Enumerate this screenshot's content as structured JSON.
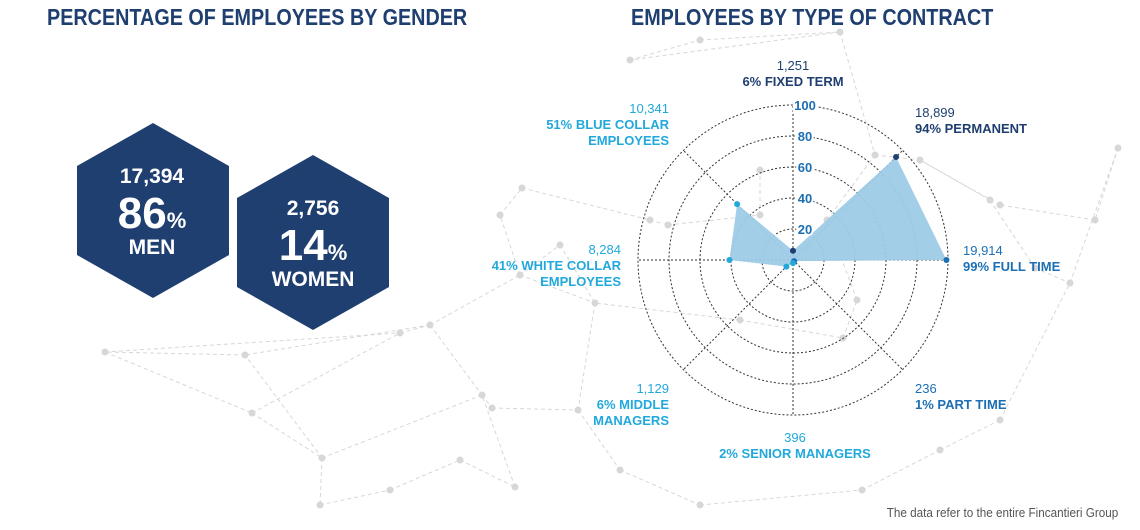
{
  "titles": {
    "gender": "PERCENTAGE OF EMPLOYEES BY GENDER",
    "contract": "EMPLOYEES BY TYPE OF CONTRACT"
  },
  "gender": {
    "men": {
      "count": "17,394",
      "percent": "86",
      "label": "MEN"
    },
    "women": {
      "count": "2,756",
      "percent": "14",
      "label": "WOMEN"
    },
    "percent_sign": "%"
  },
  "footnote": "The data refer to the entire Fincantieri Group",
  "colors": {
    "title": "#1f3f70",
    "hexagon": "#1f3f70",
    "radar_fill": "#9dcbe6",
    "dark_label": "#1f3f70",
    "contract_label": "#1c6fb4",
    "category_label": "#21a9dc"
  },
  "chart_data": {
    "type": "radar",
    "ticks": [
      "20",
      "40",
      "60",
      "80",
      "100"
    ],
    "range": [
      0,
      100
    ],
    "axes": [
      {
        "id": "fixed",
        "count": "1,251",
        "label": "6% FIXED TERM",
        "value": 6,
        "color_key": "dark_label"
      },
      {
        "id": "permanent",
        "count": "18,899",
        "label": "94% PERMANENT",
        "value": 94,
        "color_key": "dark_label"
      },
      {
        "id": "full",
        "count": "19,914",
        "label": "99% FULL TIME",
        "value": 99,
        "color_key": "contract_label"
      },
      {
        "id": "part",
        "count": "236",
        "label": "1% PART TIME",
        "value": 1,
        "color_key": "contract_label"
      },
      {
        "id": "senior",
        "count": "396",
        "label": "2% SENIOR MANAGERS",
        "value": 2,
        "color_key": "category_label"
      },
      {
        "id": "middle",
        "count": "1,129",
        "label": "6% MIDDLE MANAGERS",
        "value": 6,
        "color_key": "category_label"
      },
      {
        "id": "white",
        "count": "8,284",
        "label": "41% WHITE COLLAR EMPLOYEES",
        "value": 41,
        "color_key": "category_label"
      },
      {
        "id": "blue",
        "count": "10,341",
        "label": "51% BLUE COLLAR EMPLOYEES",
        "value": 51,
        "color_key": "category_label"
      }
    ]
  }
}
